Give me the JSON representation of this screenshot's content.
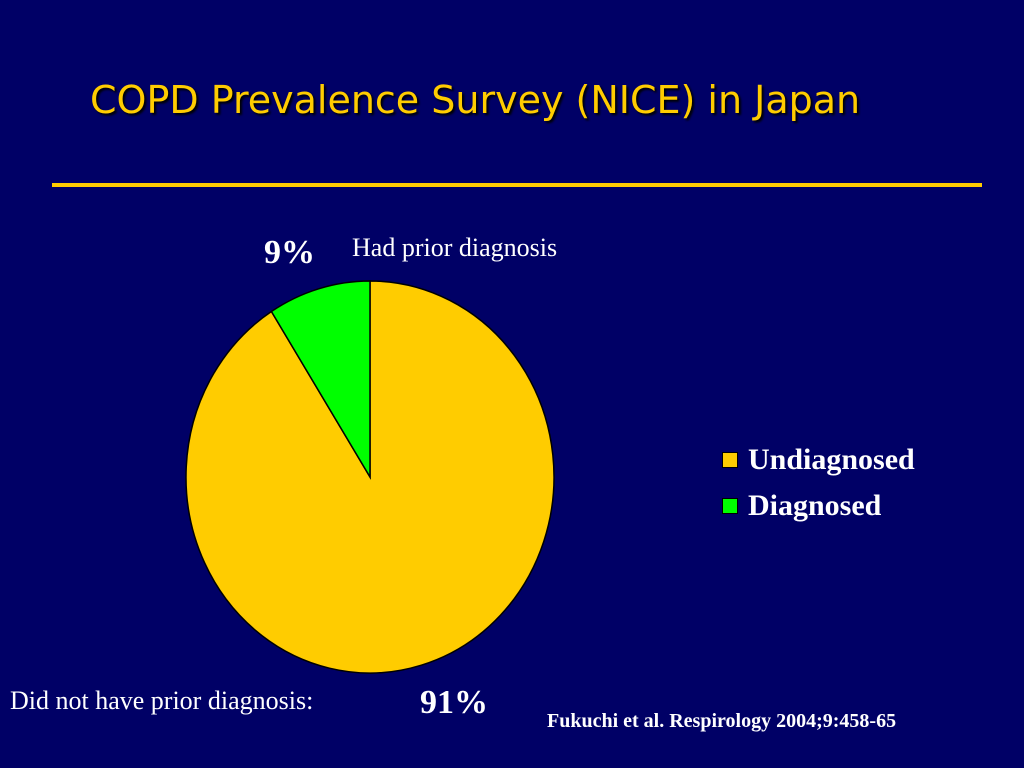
{
  "slide": {
    "title": "COPD Prevalence Survey (NICE) in Japan",
    "source": "Fukuchi et al. Respirology 2004;9:458-65"
  },
  "colors": {
    "background": "#000066",
    "title": "#FFCC00",
    "undiagnosed": "#FFCC00",
    "diagnosed": "#00FF00",
    "text": "#FFFFFF"
  },
  "annotations": {
    "diagnosed_label": "Had prior diagnosis",
    "diagnosed_pct": "9%",
    "undiagnosed_label": "Did not have prior diagnosis:",
    "undiagnosed_pct": "91%"
  },
  "chart_data": {
    "type": "pie",
    "title": "",
    "slices": [
      {
        "label": "Undiagnosed",
        "value": 91,
        "color": "#FFCC00"
      },
      {
        "label": "Diagnosed",
        "value": 9,
        "color": "#00FF00"
      }
    ],
    "legend": {
      "position": "right",
      "items": [
        "Undiagnosed",
        "Diagnosed"
      ]
    },
    "start_angle": "12 o'clock",
    "direction": "clockwise"
  }
}
